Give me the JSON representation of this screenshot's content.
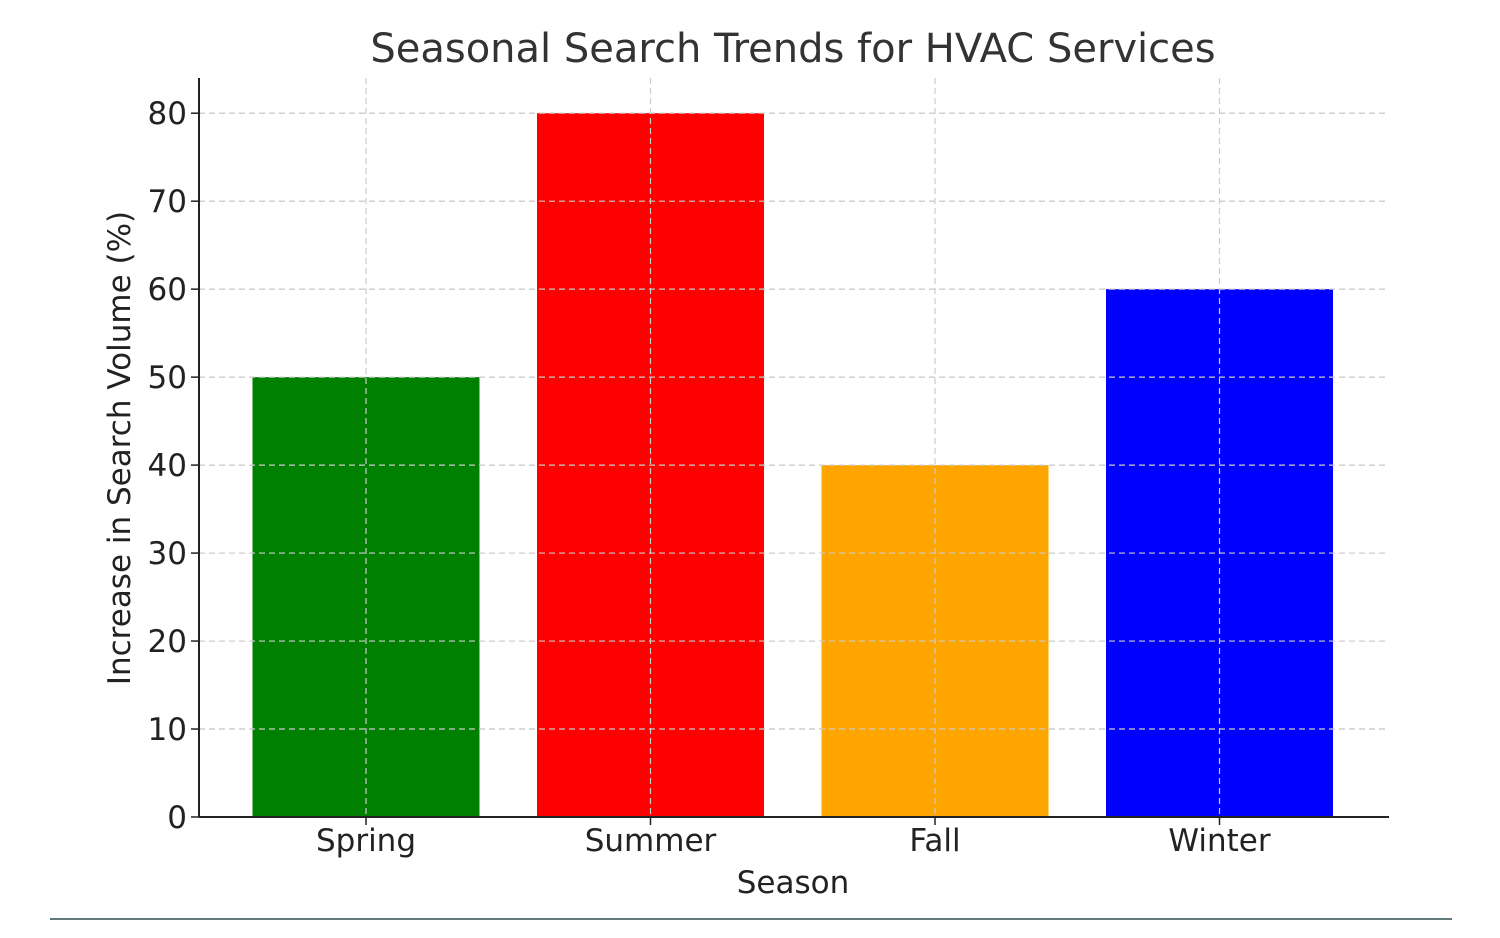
{
  "chart_data": {
    "type": "bar",
    "title": "Seasonal Search Trends for HVAC Services",
    "xlabel": "Season",
    "ylabel": "Increase in Search Volume (%)",
    "categories": [
      "Spring",
      "Summer",
      "Fall",
      "Winter"
    ],
    "values": [
      50,
      80,
      40,
      60
    ],
    "colors": [
      "#008000",
      "#ff0000",
      "#ffa500",
      "#0000ff"
    ],
    "ylim": [
      0,
      84
    ],
    "yticks": [
      0,
      10,
      20,
      30,
      40,
      50,
      60,
      70,
      80
    ],
    "grid": true,
    "grid_style": "dashed",
    "legend": "none"
  }
}
